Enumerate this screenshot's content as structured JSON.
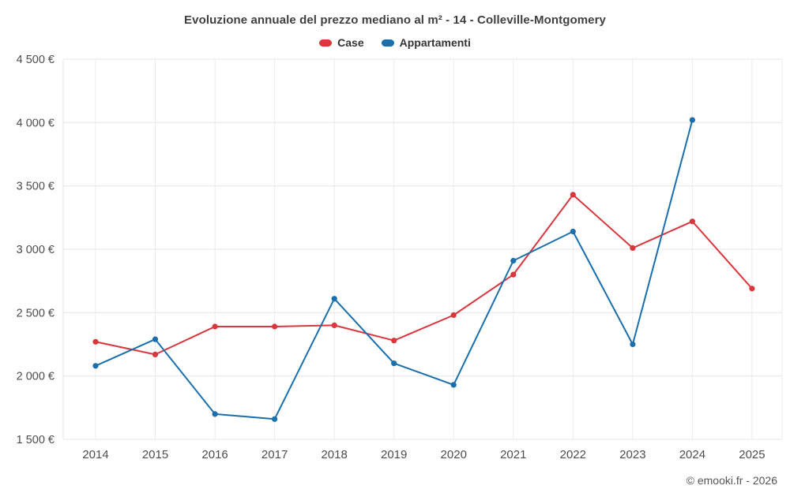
{
  "header": {
    "title": "Evoluzione annuale del prezzo mediano al m² - 14 - Colleville-Montgomery"
  },
  "legend": [
    {
      "label": "Case",
      "color": "#d8373e"
    },
    {
      "label": "Appartamenti",
      "color": "#1a6fac"
    }
  ],
  "footer": {
    "copyright": "© emooki.fr - 2026"
  },
  "chart_data": {
    "type": "line",
    "title": "Evoluzione annuale del prezzo mediano al m² - 14 - Colleville-Montgomery",
    "x": [
      2014,
      2015,
      2016,
      2017,
      2018,
      2019,
      2020,
      2021,
      2022,
      2023,
      2024,
      2025
    ],
    "series": [
      {
        "name": "Case",
        "color": "#d8373e",
        "values": [
          2270,
          2170,
          2390,
          2390,
          2400,
          2280,
          2480,
          2800,
          3430,
          3010,
          3220,
          2690
        ]
      },
      {
        "name": "Appartamenti",
        "color": "#1a6fac",
        "values": [
          2080,
          2290,
          1700,
          1660,
          2610,
          2100,
          1930,
          2910,
          3140,
          2250,
          4020,
          null
        ]
      }
    ],
    "xlabel": "",
    "ylabel": "",
    "ylim": [
      1500,
      4500
    ],
    "ytick_step": 500,
    "y_format": "{value} €",
    "grid": true,
    "legend_position": "top"
  }
}
